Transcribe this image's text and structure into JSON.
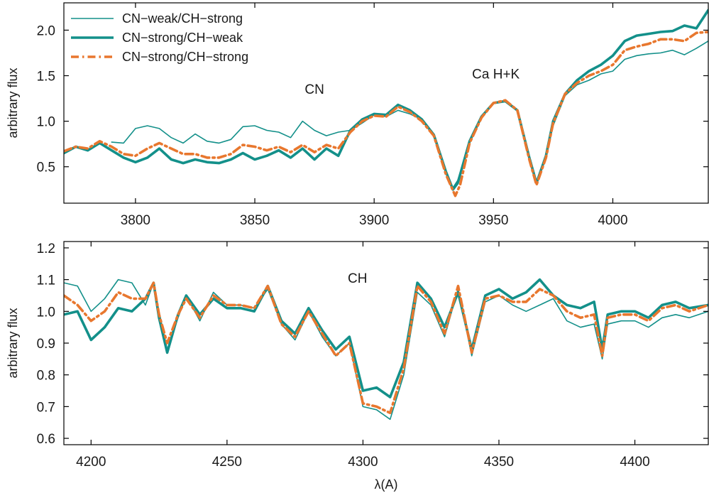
{
  "chart_data": [
    {
      "type": "line",
      "ylabel": "arbitrary flux",
      "xlim": [
        3770,
        4040
      ],
      "ylim": [
        0.1,
        2.3
      ],
      "xticks": [
        3800,
        3850,
        3900,
        3950,
        4000
      ],
      "yticks": [
        0.5,
        1.0,
        1.5,
        2.0
      ],
      "ytick_labels": [
        "0.5",
        "1.0",
        "1.5",
        "2.0"
      ],
      "grid": false,
      "legend": {
        "placement": "top-left"
      },
      "annotations": [
        {
          "text": "CN",
          "x": 3875,
          "y": 1.3
        },
        {
          "text": "Ca H+K",
          "x": 3951,
          "y": 1.47
        }
      ],
      "series": [
        {
          "name": "CN−weak/CH−strong",
          "style": "thin",
          "color": "#13908a",
          "x": [
            3790,
            3795,
            3800,
            3805,
            3810,
            3815,
            3820,
            3825,
            3830,
            3835,
            3840,
            3845,
            3850,
            3855,
            3860,
            3865,
            3870,
            3875,
            3880,
            3885,
            3890,
            3895,
            3900,
            3905,
            3910,
            3915,
            3920,
            3925,
            3930,
            3933,
            3935,
            3940,
            3945,
            3950,
            3955,
            3960,
            3965,
            3968,
            3972,
            3975,
            3980,
            3985,
            3990,
            3995,
            4000,
            4005,
            4010,
            4015,
            4020,
            4025,
            4030,
            4035,
            4040
          ],
          "y": [
            0.77,
            0.76,
            0.92,
            0.95,
            0.92,
            0.82,
            0.76,
            0.86,
            0.78,
            0.76,
            0.8,
            0.94,
            0.95,
            0.9,
            0.88,
            0.82,
            1.0,
            0.9,
            0.84,
            0.88,
            0.9,
            0.98,
            1.07,
            1.05,
            1.12,
            1.08,
            1.02,
            0.85,
            0.45,
            0.27,
            0.35,
            0.76,
            1.05,
            1.2,
            1.23,
            1.12,
            0.6,
            0.32,
            0.6,
            0.95,
            1.28,
            1.4,
            1.45,
            1.52,
            1.55,
            1.68,
            1.72,
            1.74,
            1.75,
            1.78,
            1.73,
            1.8,
            1.88
          ]
        },
        {
          "name": "CN−strong/CH−weak",
          "style": "thick",
          "color": "#13908a",
          "x": [
            3770,
            3775,
            3780,
            3785,
            3790,
            3795,
            3800,
            3805,
            3810,
            3815,
            3820,
            3825,
            3830,
            3835,
            3840,
            3845,
            3850,
            3855,
            3860,
            3865,
            3870,
            3875,
            3880,
            3885,
            3890,
            3895,
            3900,
            3905,
            3910,
            3915,
            3920,
            3925,
            3930,
            3933,
            3935,
            3940,
            3945,
            3950,
            3955,
            3960,
            3965,
            3968,
            3972,
            3975,
            3980,
            3985,
            3990,
            3995,
            4000,
            4005,
            4010,
            4015,
            4020,
            4025,
            4030,
            4035,
            4040
          ],
          "y": [
            0.65,
            0.72,
            0.68,
            0.76,
            0.68,
            0.6,
            0.55,
            0.6,
            0.7,
            0.58,
            0.54,
            0.58,
            0.55,
            0.54,
            0.58,
            0.65,
            0.58,
            0.62,
            0.68,
            0.6,
            0.7,
            0.58,
            0.7,
            0.62,
            0.9,
            1.02,
            1.08,
            1.07,
            1.18,
            1.12,
            1.02,
            0.85,
            0.45,
            0.25,
            0.32,
            0.78,
            1.05,
            1.2,
            1.22,
            1.12,
            0.6,
            0.32,
            0.62,
            1.0,
            1.3,
            1.45,
            1.55,
            1.62,
            1.72,
            1.88,
            1.94,
            1.96,
            1.98,
            1.99,
            2.05,
            2.02,
            2.22
          ]
        },
        {
          "name": "CN−strong/CH−strong",
          "style": "dash-dot",
          "color": "#e8772e",
          "x": [
            3770,
            3775,
            3780,
            3785,
            3790,
            3795,
            3800,
            3805,
            3810,
            3815,
            3820,
            3825,
            3830,
            3835,
            3840,
            3845,
            3850,
            3855,
            3860,
            3865,
            3870,
            3875,
            3880,
            3885,
            3890,
            3895,
            3900,
            3905,
            3910,
            3915,
            3920,
            3925,
            3930,
            3934,
            3936,
            3940,
            3945,
            3950,
            3955,
            3960,
            3965,
            3968,
            3972,
            3975,
            3980,
            3985,
            3990,
            3995,
            4000,
            4005,
            4010,
            4015,
            4020,
            4025,
            4030,
            4035,
            4040
          ],
          "y": [
            0.67,
            0.72,
            0.7,
            0.78,
            0.72,
            0.64,
            0.62,
            0.7,
            0.76,
            0.7,
            0.64,
            0.64,
            0.6,
            0.6,
            0.64,
            0.74,
            0.72,
            0.68,
            0.72,
            0.66,
            0.74,
            0.66,
            0.74,
            0.7,
            0.88,
            1.0,
            1.06,
            1.05,
            1.16,
            1.1,
            1.0,
            0.84,
            0.42,
            0.18,
            0.3,
            0.76,
            1.04,
            1.2,
            1.23,
            1.12,
            0.58,
            0.3,
            0.6,
            0.98,
            1.3,
            1.42,
            1.5,
            1.55,
            1.62,
            1.78,
            1.82,
            1.85,
            1.9,
            1.9,
            1.88,
            1.97,
            1.98
          ]
        }
      ]
    },
    {
      "type": "line",
      "xlabel": "λ(A)",
      "ylabel": "arbitrary flux",
      "xlim": [
        4190,
        4427
      ],
      "ylim": [
        0.58,
        1.22
      ],
      "xticks": [
        4200,
        4250,
        4300,
        4350,
        4400
      ],
      "yticks": [
        0.6,
        0.7,
        0.8,
        0.9,
        1.0,
        1.1,
        1.2
      ],
      "ytick_labels": [
        "0.6",
        "0.7",
        "0.8",
        "0.9",
        "1.0",
        "1.1",
        "1.2"
      ],
      "grid": false,
      "annotations": [
        {
          "text": "CH",
          "x": 4298,
          "y": 1.09
        }
      ],
      "series": [
        {
          "name": "CN−weak/CH−strong",
          "style": "thin",
          "color": "#13908a",
          "x": [
            4190,
            4195,
            4200,
            4205,
            4210,
            4215,
            4220,
            4223,
            4225,
            4228,
            4232,
            4235,
            4240,
            4245,
            4250,
            4255,
            4260,
            4265,
            4270,
            4275,
            4280,
            4285,
            4290,
            4295,
            4300,
            4305,
            4310,
            4315,
            4320,
            4325,
            4330,
            4335,
            4340,
            4345,
            4350,
            4355,
            4360,
            4365,
            4370,
            4375,
            4380,
            4385,
            4388,
            4390,
            4395,
            4400,
            4405,
            4410,
            4415,
            4420,
            4427
          ],
          "y": [
            1.09,
            1.08,
            1.0,
            1.04,
            1.1,
            1.09,
            1.02,
            1.09,
            1.0,
            0.88,
            0.98,
            1.05,
            0.97,
            1.06,
            1.02,
            1.02,
            1.01,
            1.07,
            0.96,
            0.91,
            1.0,
            0.92,
            0.86,
            0.9,
            0.7,
            0.69,
            0.66,
            0.8,
            1.06,
            1.02,
            0.92,
            1.07,
            0.86,
            1.03,
            1.05,
            1.02,
            1.0,
            1.02,
            1.04,
            0.97,
            0.95,
            0.96,
            0.85,
            0.96,
            0.97,
            0.97,
            0.95,
            0.98,
            0.99,
            0.98,
            1.0
          ]
        },
        {
          "name": "CN−strong/CH−weak",
          "style": "thick",
          "color": "#13908a",
          "x": [
            4190,
            4195,
            4200,
            4205,
            4210,
            4215,
            4220,
            4223,
            4225,
            4228,
            4232,
            4235,
            4240,
            4245,
            4250,
            4255,
            4260,
            4265,
            4270,
            4275,
            4280,
            4285,
            4290,
            4295,
            4300,
            4305,
            4310,
            4315,
            4320,
            4325,
            4330,
            4335,
            4340,
            4345,
            4350,
            4355,
            4360,
            4365,
            4370,
            4375,
            4380,
            4385,
            4388,
            4390,
            4395,
            4400,
            4405,
            4410,
            4415,
            4420,
            4427
          ],
          "y": [
            0.99,
            1.0,
            0.91,
            0.95,
            1.01,
            1.0,
            1.04,
            1.09,
            0.98,
            0.87,
            0.99,
            1.05,
            0.99,
            1.04,
            1.01,
            1.01,
            1.0,
            1.08,
            0.97,
            0.93,
            1.01,
            0.94,
            0.88,
            0.92,
            0.75,
            0.76,
            0.73,
            0.84,
            1.09,
            1.04,
            0.95,
            1.06,
            0.88,
            1.05,
            1.07,
            1.04,
            1.06,
            1.1,
            1.05,
            1.02,
            1.01,
            1.03,
            0.88,
            0.99,
            1.0,
            1.0,
            0.98,
            1.02,
            1.03,
            1.01,
            1.02
          ]
        },
        {
          "name": "CN−strong/CH−strong",
          "style": "dash-dot",
          "color": "#e8772e",
          "x": [
            4190,
            4195,
            4200,
            4205,
            4210,
            4215,
            4220,
            4223,
            4225,
            4228,
            4232,
            4235,
            4240,
            4245,
            4250,
            4255,
            4260,
            4265,
            4270,
            4275,
            4280,
            4285,
            4290,
            4295,
            4300,
            4305,
            4310,
            4315,
            4320,
            4325,
            4330,
            4335,
            4340,
            4345,
            4350,
            4355,
            4360,
            4365,
            4370,
            4375,
            4380,
            4385,
            4388,
            4390,
            4395,
            4400,
            4405,
            4410,
            4415,
            4420,
            4427
          ],
          "y": [
            1.05,
            1.02,
            0.97,
            1.0,
            1.06,
            1.04,
            1.04,
            1.09,
            0.99,
            0.9,
            0.99,
            1.04,
            0.98,
            1.05,
            1.02,
            1.02,
            1.01,
            1.08,
            0.96,
            0.92,
            1.0,
            0.93,
            0.86,
            0.9,
            0.71,
            0.7,
            0.68,
            0.82,
            1.08,
            1.03,
            0.93,
            1.08,
            0.87,
            1.04,
            1.05,
            1.03,
            1.03,
            1.07,
            1.05,
            1.0,
            0.98,
            0.99,
            0.86,
            0.98,
            0.99,
            0.99,
            0.97,
            1.01,
            1.02,
            1.0,
            1.02
          ]
        }
      ]
    }
  ]
}
